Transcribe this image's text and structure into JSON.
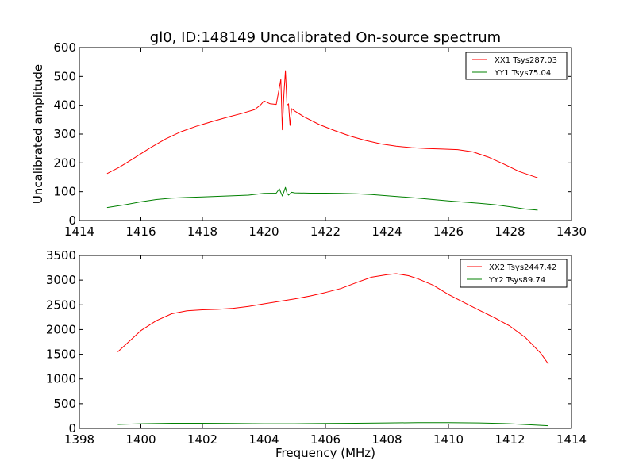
{
  "chart_data": [
    {
      "type": "line",
      "title": "gl0, ID:148149 Uncalibrated On-source spectrum",
      "xlabel": "",
      "ylabel": "Uncalibrated amplitude",
      "xlim": [
        1414,
        1430
      ],
      "ylim": [
        0,
        600
      ],
      "xticks": [
        1414,
        1416,
        1418,
        1420,
        1422,
        1424,
        1426,
        1428,
        1430
      ],
      "yticks": [
        0,
        100,
        200,
        300,
        400,
        500,
        600
      ],
      "grid": false,
      "legend_position": "top-right",
      "series": [
        {
          "name": "XX1 Tsys287.03",
          "color": "#ff0000",
          "x": [
            1414.9,
            1415.3,
            1415.8,
            1416.3,
            1416.8,
            1417.3,
            1417.8,
            1418.3,
            1418.8,
            1419.3,
            1419.7,
            1419.9,
            1420.0,
            1420.2,
            1420.4,
            1420.5,
            1420.55,
            1420.6,
            1420.65,
            1420.7,
            1420.75,
            1420.8,
            1420.85,
            1420.9,
            1421.0,
            1421.3,
            1421.8,
            1422.3,
            1422.8,
            1423.3,
            1423.8,
            1424.3,
            1424.8,
            1425.3,
            1425.8,
            1426.3,
            1426.8,
            1427.3,
            1427.8,
            1428.3,
            1428.9
          ],
          "values": [
            163,
            185,
            218,
            252,
            283,
            308,
            327,
            343,
            358,
            372,
            385,
            402,
            415,
            405,
            403,
            460,
            490,
            315,
            440,
            520,
            400,
            405,
            330,
            388,
            380,
            360,
            333,
            312,
            293,
            278,
            266,
            258,
            253,
            250,
            248,
            246,
            238,
            220,
            196,
            170,
            148
          ]
        },
        {
          "name": "YY1 Tsys75.04",
          "color": "#008000",
          "x": [
            1414.9,
            1415.5,
            1416.0,
            1416.5,
            1417.0,
            1417.5,
            1418.0,
            1418.5,
            1419.0,
            1419.5,
            1419.8,
            1420.0,
            1420.4,
            1420.5,
            1420.6,
            1420.65,
            1420.7,
            1420.75,
            1420.8,
            1420.9,
            1421.0,
            1421.5,
            1422.0,
            1422.5,
            1423.0,
            1423.5,
            1424.0,
            1424.5,
            1425.0,
            1425.5,
            1426.0,
            1426.5,
            1427.0,
            1427.5,
            1428.0,
            1428.5,
            1428.9
          ],
          "values": [
            45,
            55,
            65,
            73,
            78,
            80,
            82,
            84,
            86,
            88,
            92,
            94,
            95,
            110,
            85,
            100,
            115,
            95,
            88,
            98,
            96,
            95,
            95,
            94,
            93,
            90,
            86,
            82,
            78,
            73,
            68,
            64,
            60,
            55,
            48,
            40,
            36
          ]
        }
      ]
    },
    {
      "type": "line",
      "title": "",
      "xlabel": "Frequency (MHz)",
      "ylabel": "",
      "xlim": [
        1398,
        1414
      ],
      "ylim": [
        0,
        3500
      ],
      "xticks": [
        1398,
        1400,
        1402,
        1404,
        1406,
        1408,
        1410,
        1412,
        1414
      ],
      "yticks": [
        0,
        500,
        1000,
        1500,
        2000,
        2500,
        3000,
        3500
      ],
      "grid": false,
      "legend_position": "top-right",
      "series": [
        {
          "name": "XX2 Tsys2447.42",
          "color": "#ff0000",
          "x": [
            1399.25,
            1399.6,
            1400.0,
            1400.5,
            1401.0,
            1401.5,
            1402.0,
            1402.5,
            1403.0,
            1403.5,
            1404.0,
            1404.5,
            1405.0,
            1405.5,
            1406.0,
            1406.5,
            1407.0,
            1407.5,
            1408.0,
            1408.3,
            1408.7,
            1409.0,
            1409.5,
            1410.0,
            1410.5,
            1411.0,
            1411.5,
            1412.0,
            1412.5,
            1413.0,
            1413.25
          ],
          "values": [
            1550,
            1750,
            1980,
            2180,
            2320,
            2380,
            2400,
            2410,
            2430,
            2470,
            2520,
            2570,
            2620,
            2680,
            2750,
            2830,
            2950,
            3060,
            3110,
            3130,
            3090,
            3030,
            2900,
            2710,
            2550,
            2390,
            2240,
            2070,
            1840,
            1520,
            1300
          ]
        },
        {
          "name": "YY2 Tsys89.74",
          "color": "#008000",
          "x": [
            1399.25,
            1400.0,
            1401.0,
            1402.0,
            1403.0,
            1404.0,
            1405.0,
            1406.0,
            1407.0,
            1408.0,
            1409.0,
            1410.0,
            1411.0,
            1412.0,
            1413.25
          ],
          "values": [
            80,
            95,
            105,
            105,
            100,
            95,
            95,
            100,
            105,
            110,
            115,
            115,
            110,
            95,
            55
          ]
        }
      ]
    }
  ]
}
